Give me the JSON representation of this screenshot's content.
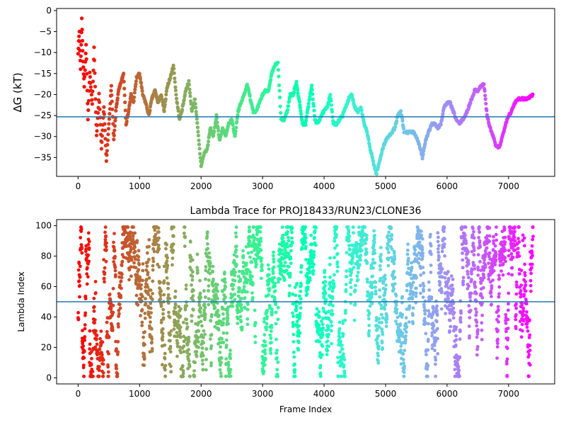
{
  "chart_data": [
    {
      "type": "scatter",
      "title": "",
      "xlabel": "",
      "ylabel": "ΔG (kT)",
      "xlim": [
        -350,
        7750
      ],
      "ylim": [
        -39.5,
        0.5
      ],
      "xticks": [
        0,
        1000,
        2000,
        3000,
        4000,
        5000,
        6000,
        7000
      ],
      "yticks": [
        0,
        -5,
        -10,
        -15,
        -20,
        -25,
        -30,
        -35
      ],
      "hline": -25.3,
      "hline_color": "#1f77b4",
      "colormap": "rainbow",
      "color_order": "frame index 0 = red, last frame = violet",
      "grid": false,
      "legend": "none",
      "trace": [
        [
          0,
          -10
        ],
        [
          20,
          -5
        ],
        [
          40,
          -14
        ],
        [
          60,
          -2
        ],
        [
          80,
          -12
        ],
        [
          100,
          -18
        ],
        [
          130,
          -8
        ],
        [
          160,
          -26
        ],
        [
          190,
          -15
        ],
        [
          230,
          -22
        ],
        [
          260,
          -9
        ],
        [
          300,
          -30
        ],
        [
          340,
          -20
        ],
        [
          380,
          -33
        ],
        [
          420,
          -23
        ],
        [
          460,
          -36
        ],
        [
          500,
          -27
        ],
        [
          540,
          -18
        ],
        [
          580,
          -31
        ],
        [
          620,
          -23
        ],
        [
          660,
          -19
        ],
        [
          700,
          -17
        ],
        [
          740,
          -15
        ],
        [
          780,
          -27
        ],
        [
          820,
          -24
        ],
        [
          860,
          -20
        ],
        [
          900,
          -22
        ],
        [
          950,
          -16
        ],
        [
          1000,
          -15
        ],
        [
          1050,
          -20
        ],
        [
          1100,
          -22
        ],
        [
          1150,
          -25
        ],
        [
          1200,
          -21
        ],
        [
          1250,
          -19
        ],
        [
          1300,
          -22
        ],
        [
          1350,
          -20
        ],
        [
          1400,
          -24
        ],
        [
          1450,
          -18
        ],
        [
          1500,
          -16
        ],
        [
          1550,
          -13
        ],
        [
          1600,
          -21
        ],
        [
          1650,
          -26
        ],
        [
          1700,
          -23
        ],
        [
          1750,
          -19
        ],
        [
          1800,
          -17
        ],
        [
          1850,
          -24
        ],
        [
          1900,
          -21
        ],
        [
          1950,
          -29
        ],
        [
          2000,
          -37
        ],
        [
          2050,
          -34
        ],
        [
          2100,
          -33
        ],
        [
          2150,
          -28
        ],
        [
          2200,
          -30
        ],
        [
          2250,
          -25
        ],
        [
          2300,
          -31
        ],
        [
          2350,
          -28
        ],
        [
          2400,
          -30
        ],
        [
          2450,
          -27
        ],
        [
          2500,
          -26
        ],
        [
          2550,
          -30
        ],
        [
          2600,
          -24
        ],
        [
          2650,
          -22
        ],
        [
          2700,
          -20
        ],
        [
          2750,
          -17.5
        ],
        [
          2800,
          -21
        ],
        [
          2850,
          -24
        ],
        [
          2900,
          -24
        ],
        [
          2950,
          -22
        ],
        [
          3000,
          -20
        ],
        [
          3050,
          -19
        ],
        [
          3100,
          -19
        ],
        [
          3150,
          -15
        ],
        [
          3200,
          -13
        ],
        [
          3250,
          -12.5
        ],
        [
          3300,
          -26
        ],
        [
          3350,
          -26
        ],
        [
          3400,
          -24
        ],
        [
          3450,
          -20
        ],
        [
          3500,
          -20
        ],
        [
          3550,
          -17
        ],
        [
          3600,
          -22
        ],
        [
          3650,
          -27
        ],
        [
          3700,
          -27
        ],
        [
          3750,
          -22
        ],
        [
          3800,
          -18
        ],
        [
          3850,
          -26
        ],
        [
          3900,
          -27
        ],
        [
          3950,
          -25
        ],
        [
          4000,
          -24
        ],
        [
          4050,
          -23
        ],
        [
          4100,
          -20
        ],
        [
          4150,
          -27
        ],
        [
          4200,
          -27
        ],
        [
          4250,
          -26
        ],
        [
          4300,
          -25
        ],
        [
          4350,
          -23
        ],
        [
          4400,
          -21
        ],
        [
          4450,
          -20
        ],
        [
          4500,
          -23
        ],
        [
          4550,
          -24
        ],
        [
          4600,
          -23
        ],
        [
          4650,
          -27
        ],
        [
          4700,
          -29
        ],
        [
          4750,
          -33
        ],
        [
          4800,
          -36
        ],
        [
          4850,
          -39
        ],
        [
          4900,
          -36
        ],
        [
          4950,
          -33
        ],
        [
          5000,
          -31
        ],
        [
          5050,
          -30
        ],
        [
          5100,
          -29
        ],
        [
          5150,
          -28
        ],
        [
          5200,
          -25
        ],
        [
          5250,
          -24
        ],
        [
          5300,
          -29
        ],
        [
          5350,
          -29
        ],
        [
          5400,
          -29
        ],
        [
          5450,
          -29
        ],
        [
          5500,
          -30
        ],
        [
          5550,
          -32
        ],
        [
          5600,
          -35
        ],
        [
          5650,
          -31
        ],
        [
          5700,
          -29
        ],
        [
          5750,
          -27
        ],
        [
          5800,
          -27
        ],
        [
          5850,
          -28
        ],
        [
          5900,
          -27
        ],
        [
          5950,
          -23
        ],
        [
          6000,
          -22
        ],
        [
          6050,
          -22
        ],
        [
          6100,
          -24
        ],
        [
          6150,
          -26
        ],
        [
          6200,
          -27
        ],
        [
          6250,
          -26
        ],
        [
          6300,
          -25
        ],
        [
          6350,
          -23
        ],
        [
          6400,
          -21
        ],
        [
          6450,
          -19
        ],
        [
          6500,
          -19
        ],
        [
          6550,
          -18
        ],
        [
          6600,
          -17.5
        ],
        [
          6650,
          -25
        ],
        [
          6700,
          -28
        ],
        [
          6750,
          -30
        ],
        [
          6800,
          -32.5
        ],
        [
          6850,
          -32.5
        ],
        [
          6900,
          -30
        ],
        [
          6950,
          -27
        ],
        [
          7000,
          -25
        ],
        [
          7050,
          -24
        ],
        [
          7100,
          -22
        ],
        [
          7150,
          -21
        ],
        [
          7200,
          -21
        ],
        [
          7250,
          -21
        ],
        [
          7300,
          -21
        ],
        [
          7350,
          -20.5
        ],
        [
          7400,
          -20
        ]
      ]
    },
    {
      "type": "scatter",
      "title": "Lambda Trace for PROJ18433/RUN23/CLONE36",
      "xlabel": "Frame Index",
      "ylabel": "Lambda Index",
      "xlim": [
        -350,
        7750
      ],
      "ylim": [
        -4,
        104
      ],
      "xticks": [
        0,
        1000,
        2000,
        3000,
        4000,
        5000,
        6000,
        7000
      ],
      "yticks": [
        0,
        20,
        40,
        60,
        80,
        100
      ],
      "hline": 50,
      "hline_color": "#1f77b4",
      "colormap": "rainbow",
      "color_order": "frame index 0 = red, last frame = violet",
      "grid": false,
      "legend": "none",
      "frame_range": [
        0,
        7400
      ],
      "lambda_range": [
        0,
        100
      ],
      "dense_bands": [
        [
          2650,
          2800
        ],
        [
          3250,
          3350
        ],
        [
          4400,
          4700
        ],
        [
          5500,
          5600
        ],
        [
          6600,
          6800
        ]
      ]
    }
  ]
}
